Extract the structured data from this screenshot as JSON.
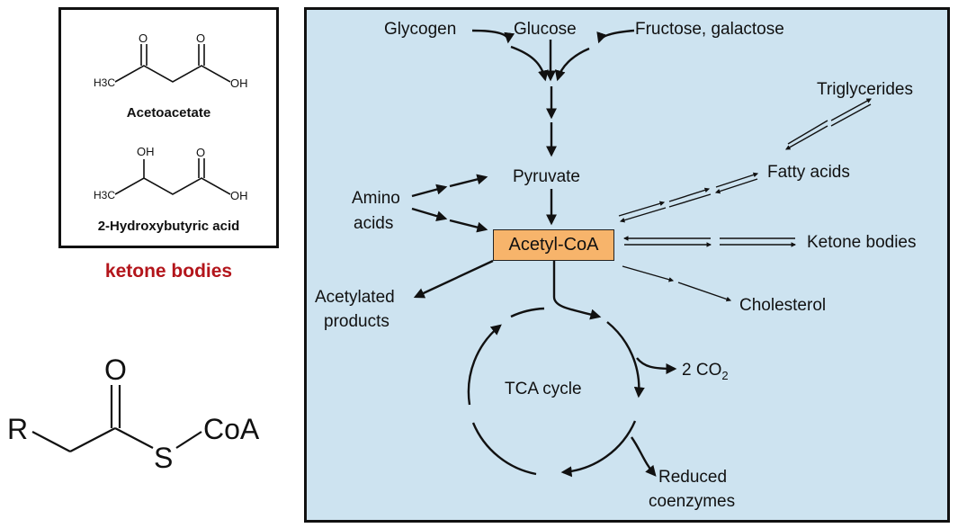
{
  "ketone_box": {
    "acetoacetate": {
      "name": "Acetoacetate",
      "atoms": {
        "ketone_o": "O",
        "acid_o": "O",
        "methyl": "H3C",
        "hydroxyl": "OH"
      }
    },
    "hydroxybutyric": {
      "name": "2-Hydroxybutyric acid",
      "atoms": {
        "hydroxyl_top": "OH",
        "acid_o": "O",
        "methyl": "H3C",
        "hydroxyl": "OH"
      }
    }
  },
  "ketone_caption": "ketone bodies",
  "acyl_coa_structure": {
    "r": "R",
    "o": "O",
    "s": "S",
    "coa": "CoA"
  },
  "pathway": {
    "center": "Acetyl-CoA",
    "sources": {
      "glycogen": "Glycogen",
      "glucose": "Glucose",
      "fructose": "Fructose, galactose",
      "pyruvate": "Pyruvate",
      "amino_line1": "Amino",
      "amino_line2": "acids"
    },
    "products": {
      "triglycerides": "Triglycerides",
      "fatty_acids": "Fatty acids",
      "ketone_bodies": "Ketone bodies",
      "cholesterol": "Cholesterol",
      "acetylated_line1": "Acetylated",
      "acetylated_line2": "products"
    },
    "tca": {
      "label": "TCA cycle",
      "co2": "2 CO",
      "co2_subscript": "2",
      "reduced_line1": "Reduced",
      "reduced_line2": "coenzymes"
    }
  },
  "colors": {
    "panel_background": "#cde3f0",
    "acetyl_coa_box": "#f7b46b",
    "caption_red": "#b3151b"
  }
}
